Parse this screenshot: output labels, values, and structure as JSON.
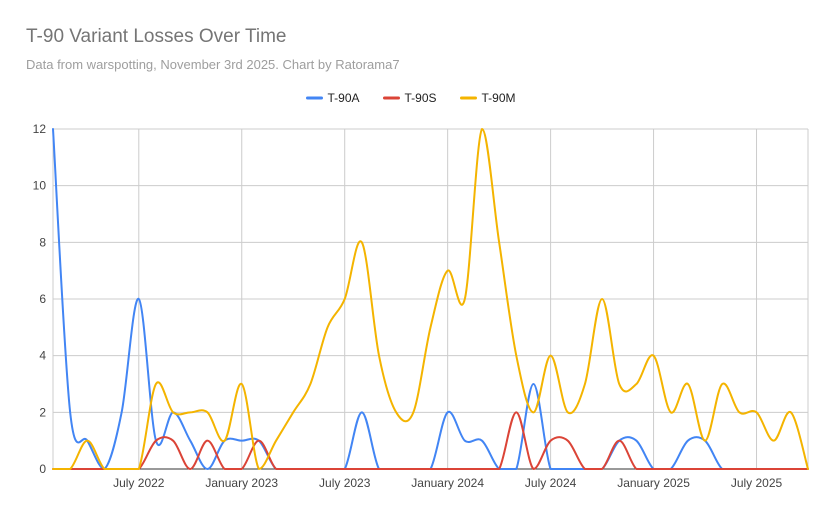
{
  "chart_data": {
    "type": "line",
    "title": "T-90 Variant Losses Over Time",
    "subtitle": "Data from warspotting, November 3rd 2025. Chart by Ratorama7",
    "xlabel": "",
    "ylabel": "",
    "x": [
      "2022-02",
      "2022-03",
      "2022-04",
      "2022-05",
      "2022-06",
      "2022-07",
      "2022-08",
      "2022-09",
      "2022-10",
      "2022-11",
      "2022-12",
      "2023-01",
      "2023-02",
      "2023-03",
      "2023-04",
      "2023-05",
      "2023-06",
      "2023-07",
      "2023-08",
      "2023-09",
      "2023-10",
      "2023-11",
      "2023-12",
      "2024-01",
      "2024-02",
      "2024-03",
      "2024-04",
      "2024-05",
      "2024-06",
      "2024-07",
      "2024-08",
      "2024-09",
      "2024-10",
      "2024-11",
      "2024-12",
      "2025-01",
      "2025-02",
      "2025-03",
      "2025-04",
      "2025-05",
      "2025-06",
      "2025-07",
      "2025-08",
      "2025-09",
      "2025-10"
    ],
    "x_ticks": [
      "July 2022",
      "January 2023",
      "July 2023",
      "January 2024",
      "July 2024",
      "January 2025",
      "July 2025"
    ],
    "y_ticks": [
      "0",
      "2",
      "4",
      "6",
      "8",
      "10",
      "12"
    ],
    "ylim": [
      0,
      12
    ],
    "grid": true,
    "legend_position": "top",
    "series": [
      {
        "name": "T-90A",
        "color": "#4285f4",
        "values": [
          12,
          2,
          1,
          0,
          2,
          6,
          1,
          2,
          1,
          0,
          1,
          1,
          1,
          0,
          0,
          0,
          0,
          0,
          2,
          0,
          0,
          0,
          0,
          2,
          1,
          1,
          0,
          0,
          3,
          0,
          0,
          0,
          0,
          1,
          1,
          0,
          0,
          1,
          1,
          0,
          0,
          0,
          0,
          0,
          0
        ]
      },
      {
        "name": "T-90S",
        "color": "#db4437",
        "values": [
          0,
          0,
          0,
          0,
          0,
          0,
          1,
          1,
          0,
          1,
          0,
          0,
          1,
          0,
          0,
          0,
          0,
          0,
          0,
          0,
          0,
          0,
          0,
          0,
          0,
          0,
          0,
          2,
          0,
          1,
          1,
          0,
          0,
          1,
          0,
          0,
          0,
          0,
          0,
          0,
          0,
          0,
          0,
          0,
          0
        ]
      },
      {
        "name": "T-90M",
        "color": "#f4b400",
        "values": [
          0,
          0,
          1,
          0,
          0,
          0,
          3,
          2,
          2,
          2,
          1,
          3,
          0,
          1,
          2,
          3,
          5,
          6,
          8,
          4,
          2,
          2,
          5,
          7,
          6,
          12,
          8,
          4,
          2,
          4,
          2,
          3,
          6,
          3,
          3,
          4,
          2,
          3,
          1,
          3,
          2,
          2,
          1,
          2,
          0
        ]
      }
    ]
  }
}
